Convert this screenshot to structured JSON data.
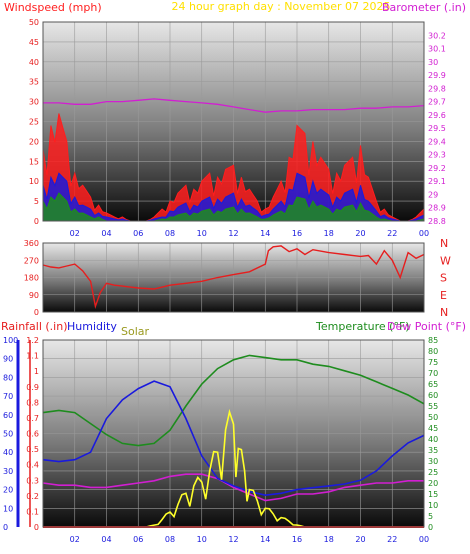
{
  "colors": {
    "wind_gust": "#ff1e1e",
    "wind_avg": "#1a1adc",
    "wind_min": "#1e8c1e",
    "barometer": "#d21ed2",
    "direction": "#e61e1e",
    "rainfall_axis": "#e61e1e",
    "humidity_axis": "#1a1add",
    "solar": "#ffff2a",
    "temperature": "#1e8c1e",
    "dewpoint": "#d21ed2",
    "title": "#ffe000",
    "grid": "#9a9a9a"
  },
  "header": {
    "windspeed_label": "Windspeed (mph)",
    "title": "24 hour graph day : November 07 2025",
    "barometer_label": "Barometer (.in)"
  },
  "labels": {
    "rainfall": "Rainfall (.in)",
    "humidity": "Humidity",
    "solar": "Solar",
    "temperature": "Temperature (°F)",
    "dewpoint": "Dew Point (°F)"
  },
  "chart_data": [
    {
      "type": "line",
      "title": "24 hour graph day : November 07 2025",
      "ylabel": "Windspeed (mph)",
      "y2label": "Barometer (.in)",
      "x_ticks": [
        "02",
        "04",
        "06",
        "08",
        "10",
        "12",
        "14",
        "16",
        "18",
        "20",
        "22",
        "00"
      ],
      "ylim": [
        0,
        50
      ],
      "y_ticks": [
        "0",
        "5",
        "10",
        "15",
        "20",
        "25",
        "30",
        "35",
        "40",
        "45",
        "50"
      ],
      "y2lim": [
        28.8,
        30.3
      ],
      "y2_ticks": [
        "28.8",
        "28.9",
        "29",
        "29.1",
        "29.2",
        "29.3",
        "29.4",
        "29.5",
        "29.6",
        "29.7",
        "29.8",
        "29.9",
        "30",
        "30.1",
        "30.2"
      ],
      "series": [
        {
          "name": "gust",
          "x": [
            0,
            0.5,
            1,
            1.5,
            2,
            2.5,
            3,
            3.5,
            4,
            4.5,
            5,
            5.5,
            6,
            6.5,
            7,
            7.5,
            8,
            8.5,
            9,
            9.5,
            10,
            10.5,
            11,
            11.5,
            12,
            12.5,
            13,
            13.5,
            14,
            14.5,
            15,
            15.5,
            16,
            16.5,
            17,
            17.5,
            18,
            18.5,
            19,
            19.5,
            20,
            20.5,
            21,
            21.5,
            22,
            22.5,
            23,
            23.5,
            24
          ],
          "y": [
            18,
            24,
            27,
            20,
            12,
            9,
            6,
            4,
            2,
            1,
            1,
            0,
            0,
            0,
            1,
            3,
            5,
            7,
            9,
            8,
            10,
            12,
            11,
            13,
            14,
            11,
            8,
            5,
            3,
            6,
            10,
            16,
            24,
            22,
            20,
            16,
            13,
            12,
            14,
            16,
            19,
            11,
            5,
            3,
            1,
            0,
            0,
            1,
            3
          ]
        },
        {
          "name": "average",
          "x": [
            0,
            0.5,
            1,
            1.5,
            2,
            2.5,
            3,
            3.5,
            4,
            4.5,
            5,
            5.5,
            6,
            6.5,
            7,
            7.5,
            8,
            8.5,
            9,
            9.5,
            10,
            10.5,
            11,
            11.5,
            12,
            12.5,
            13,
            13.5,
            14,
            14.5,
            15,
            15.5,
            16,
            16.5,
            17,
            17.5,
            18,
            18.5,
            19,
            19.5,
            20,
            20.5,
            21,
            21.5,
            22,
            22.5,
            23,
            23.5,
            24
          ],
          "y": [
            9,
            11,
            12,
            10,
            6,
            4,
            3,
            2,
            1,
            0.5,
            0.5,
            0,
            0,
            0,
            0.5,
            1,
            2.5,
            3.5,
            4.5,
            4,
            5,
            6,
            5.5,
            6,
            7,
            5.5,
            4,
            2.5,
            1.5,
            3,
            5,
            8,
            12,
            11,
            10,
            8,
            6.5,
            6,
            7,
            8,
            9,
            5,
            2.5,
            1.5,
            0.5,
            0,
            0,
            0.5,
            1.5
          ]
        },
        {
          "name": "minimum",
          "x": [
            0,
            0.5,
            1,
            1.5,
            2,
            2.5,
            3,
            3.5,
            4,
            4.5,
            5,
            5.5,
            6,
            6.5,
            7,
            7.5,
            8,
            8.5,
            9,
            9.5,
            10,
            10.5,
            11,
            11.5,
            12,
            12.5,
            13,
            13.5,
            14,
            14.5,
            15,
            15.5,
            16,
            16.5,
            17,
            17.5,
            18,
            18.5,
            19,
            19.5,
            20,
            20.5,
            21,
            21.5,
            22,
            22.5,
            23,
            23.5,
            24
          ],
          "y": [
            5,
            6,
            7,
            5,
            3,
            2,
            1,
            1,
            0,
            0,
            0,
            0,
            0,
            0,
            0,
            0.5,
            1,
            1.5,
            2,
            2,
            2.5,
            3,
            2.5,
            3,
            3.5,
            3,
            2,
            1,
            0.5,
            1.5,
            2.5,
            4,
            6,
            5.5,
            5,
            4,
            3,
            3,
            3.5,
            4,
            4.5,
            2.5,
            1,
            0.5,
            0,
            0,
            0,
            0,
            0.5
          ]
        },
        {
          "name": "barometer",
          "axis": "y2",
          "x": [
            0,
            1,
            2,
            3,
            4,
            5,
            6,
            7,
            8,
            9,
            10,
            11,
            12,
            13,
            14,
            15,
            16,
            17,
            18,
            19,
            20,
            21,
            22,
            23,
            24
          ],
          "y": [
            29.69,
            29.69,
            29.68,
            29.68,
            29.7,
            29.7,
            29.71,
            29.72,
            29.71,
            29.7,
            29.69,
            29.68,
            29.66,
            29.64,
            29.62,
            29.63,
            29.63,
            29.64,
            29.64,
            29.64,
            29.65,
            29.65,
            29.66,
            29.66,
            29.67
          ]
        }
      ]
    },
    {
      "type": "line",
      "ylim": [
        0,
        360
      ],
      "y_ticks": [
        "0",
        "90",
        "180",
        "270",
        "360"
      ],
      "compass": [
        "N",
        "W",
        "S",
        "E",
        "N"
      ],
      "series": [
        {
          "name": "direction",
          "x": [
            0,
            0.5,
            1,
            1.5,
            2,
            2.5,
            3,
            3.3,
            3.6,
            4,
            4.5,
            5,
            6,
            7,
            8,
            9,
            10,
            11,
            12,
            13,
            14,
            14.2,
            14.5,
            15,
            15.5,
            16,
            16.5,
            17,
            18,
            19,
            20,
            20.5,
            21,
            21.5,
            22,
            22.5,
            23,
            23.5,
            24
          ],
          "y": [
            245,
            235,
            230,
            240,
            250,
            215,
            160,
            30,
            100,
            150,
            140,
            135,
            125,
            120,
            140,
            150,
            160,
            180,
            195,
            210,
            250,
            320,
            340,
            345,
            315,
            330,
            300,
            325,
            310,
            300,
            290,
            295,
            250,
            320,
            270,
            180,
            310,
            280,
            300
          ]
        }
      ]
    },
    {
      "type": "line",
      "x_ticks": [
        "02",
        "04",
        "06",
        "08",
        "10",
        "12",
        "14",
        "16",
        "18",
        "20",
        "22",
        "00"
      ],
      "ylim": [
        0,
        100
      ],
      "y_ticks": [
        "0",
        "10",
        "20",
        "30",
        "40",
        "50",
        "60",
        "70",
        "80",
        "90",
        "100"
      ],
      "rain_ticks": [
        "0",
        "0.1",
        "0.2",
        "0.3",
        "0.4",
        "0.5",
        "0.6",
        "0.7",
        "0.8",
        "0.9",
        "1",
        "1.1",
        "1.2"
      ],
      "y2lim": [
        0,
        85
      ],
      "temp_ticks": [
        "0",
        "5",
        "10",
        "15",
        "20",
        "25",
        "30",
        "35",
        "40",
        "45",
        "50",
        "55",
        "60",
        "65",
        "70",
        "75",
        "80",
        "85"
      ],
      "series": [
        {
          "name": "temperature",
          "x": [
            0,
            1,
            2,
            3,
            4,
            5,
            6,
            7,
            8,
            9,
            10,
            11,
            12,
            13,
            14,
            15,
            16,
            17,
            18,
            19,
            20,
            21,
            22,
            23,
            24
          ],
          "y": [
            52,
            53,
            52,
            47,
            42,
            38,
            37,
            38,
            44,
            55,
            65,
            72,
            76,
            78,
            77,
            76,
            76,
            74,
            73,
            71,
            69,
            66,
            63,
            60,
            56
          ]
        },
        {
          "name": "dewpoint",
          "x": [
            0,
            1,
            2,
            3,
            4,
            5,
            6,
            7,
            8,
            9,
            10,
            11,
            12,
            13,
            14,
            15,
            16,
            17,
            18,
            19,
            20,
            21,
            22,
            23,
            24
          ],
          "y": [
            20,
            19,
            19,
            18,
            18,
            19,
            20,
            21,
            23,
            24,
            24,
            22,
            18,
            15,
            12,
            13,
            15,
            15,
            16,
            18,
            19,
            20,
            20,
            21,
            21
          ]
        },
        {
          "name": "humidity",
          "x": [
            0,
            1,
            2,
            3,
            4,
            5,
            6,
            7,
            8,
            9,
            10,
            11,
            12,
            13,
            14,
            15,
            16,
            17,
            18,
            19,
            20,
            21,
            22,
            23,
            24
          ],
          "y": [
            36,
            35,
            36,
            40,
            58,
            68,
            74,
            78,
            75,
            58,
            38,
            26,
            22,
            19,
            17,
            18,
            20,
            21,
            22,
            23,
            25,
            30,
            38,
            45,
            49
          ]
        },
        {
          "name": "solar",
          "x": [
            6.5,
            7,
            7.5,
            8,
            8.5,
            9,
            9.5,
            10,
            10.5,
            11,
            11.5,
            12,
            12.3,
            12.7,
            13,
            13.5,
            14,
            14.5,
            15,
            15.5,
            16,
            16.5
          ],
          "y": [
            0,
            1,
            4,
            8,
            12,
            18,
            22,
            24,
            30,
            40,
            52,
            55,
            42,
            30,
            20,
            14,
            10,
            7,
            5,
            3,
            1,
            0
          ]
        },
        {
          "name": "rainfall",
          "x": [
            0,
            24
          ],
          "y": [
            0,
            0
          ]
        }
      ]
    }
  ]
}
